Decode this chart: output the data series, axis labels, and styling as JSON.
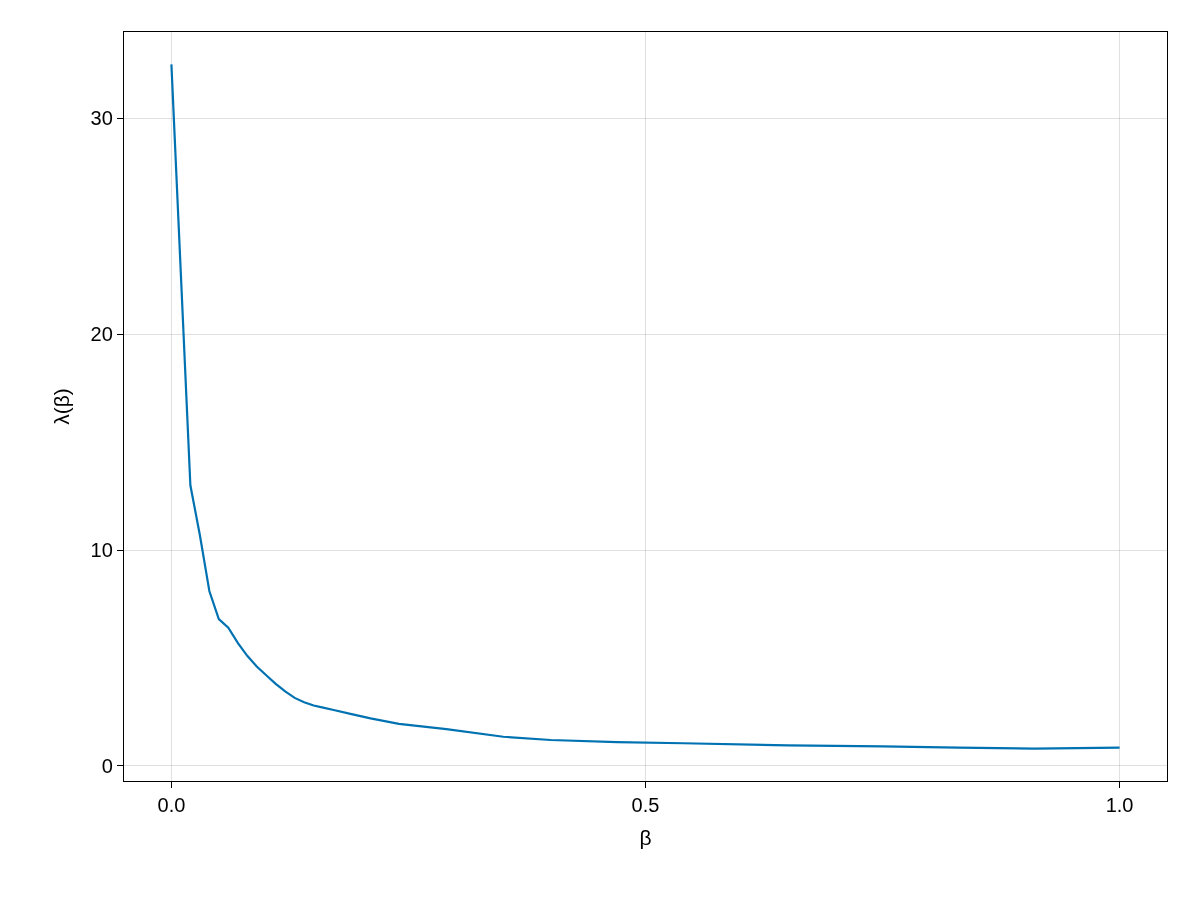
{
  "chart_data": {
    "type": "line",
    "xlabel": "β",
    "ylabel": "λ(β)",
    "x": [
      0,
      0.02,
      0.03,
      0.04,
      0.05,
      0.06,
      0.07,
      0.08,
      0.09,
      0.1,
      0.11,
      0.12,
      0.13,
      0.14,
      0.15,
      0.16,
      0.17,
      0.19,
      0.21,
      0.24,
      0.29,
      0.35,
      0.4,
      0.47,
      0.54,
      0.65,
      0.75,
      0.83,
      0.91,
      1.0
    ],
    "series": [
      {
        "color": "#0072b2",
        "values": [
          32.5,
          13.0,
          10.7,
          8.1,
          6.8,
          6.4,
          5.7,
          5.1,
          4.6,
          4.2,
          3.8,
          3.45,
          3.15,
          2.95,
          2.8,
          2.7,
          2.6,
          2.4,
          2.2,
          1.95,
          1.7,
          1.35,
          1.2,
          1.1,
          1.05,
          0.95,
          0.9,
          0.85,
          0.8,
          0.85
        ]
      }
    ],
    "xlim": [
      -0.05,
      1.05
    ],
    "ylim": [
      -0.7,
      34
    ],
    "xticks": [
      {
        "value": 0,
        "label": "0.0"
      },
      0.5,
      {
        "value": 1,
        "label": "1.0"
      }
    ],
    "yticks": [
      0,
      10,
      20,
      30
    ],
    "grid": true,
    "marker": "none",
    "line_style": "solid"
  }
}
